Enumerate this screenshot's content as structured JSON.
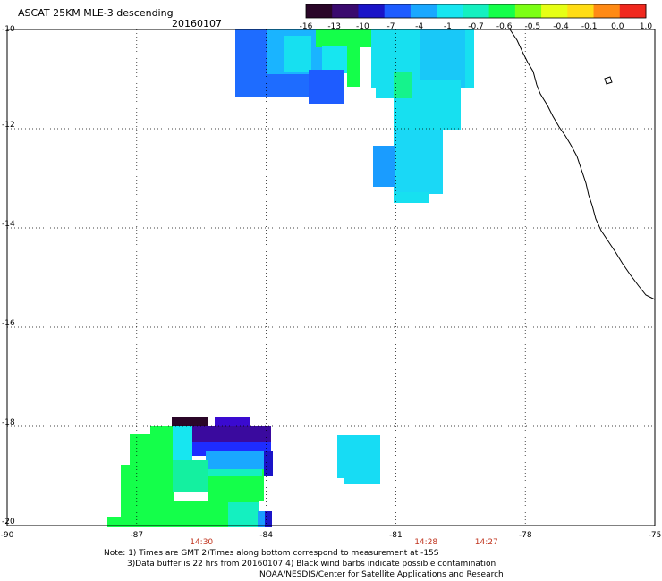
{
  "header": {
    "title": "ASCAT 25KM MLE-3 descending",
    "date": "20160107"
  },
  "colorbar": {
    "labels": [
      "-16",
      "-13",
      "-10",
      "-7",
      "-4",
      "-1",
      "-0.7",
      "-0.6",
      "-0.5",
      "-0.4",
      "-0.1",
      "0.0",
      "1.0"
    ],
    "colors": [
      "#2a0628",
      "#3a0a6e",
      "#1a14c8",
      "#1e5cff",
      "#1aa8ff",
      "#17e6f0",
      "#14f0c0",
      "#14ff4a",
      "#7cff14",
      "#e6ff14",
      "#ffdc14",
      "#ff8a14",
      "#f0281e"
    ]
  },
  "axes": {
    "x_ticks": [
      "-90",
      "-87",
      "-84",
      "-81",
      "-78",
      "-75"
    ],
    "y_ticks": [
      "-10",
      "-12",
      "-14",
      "-16",
      "-18",
      "-20"
    ],
    "xlim": [
      -90,
      -75
    ],
    "ylim": [
      -20,
      -10
    ]
  },
  "times": [
    {
      "label": "14:30",
      "lon": -85.5
    },
    {
      "label": "14:28",
      "lon": -80.3
    },
    {
      "label": "14:27",
      "lon": -78.9
    }
  ],
  "notes": {
    "line1": "Note: 1) Times are GMT 2)Times along bottom correspond to measurement at -15S",
    "line2": "3)Data buffer is 22 hrs from 20160107 4) Black wind barbs indicate possible contamination",
    "line3": "NOAA/NESDIS/Center for Satellite Applications and Research"
  }
}
